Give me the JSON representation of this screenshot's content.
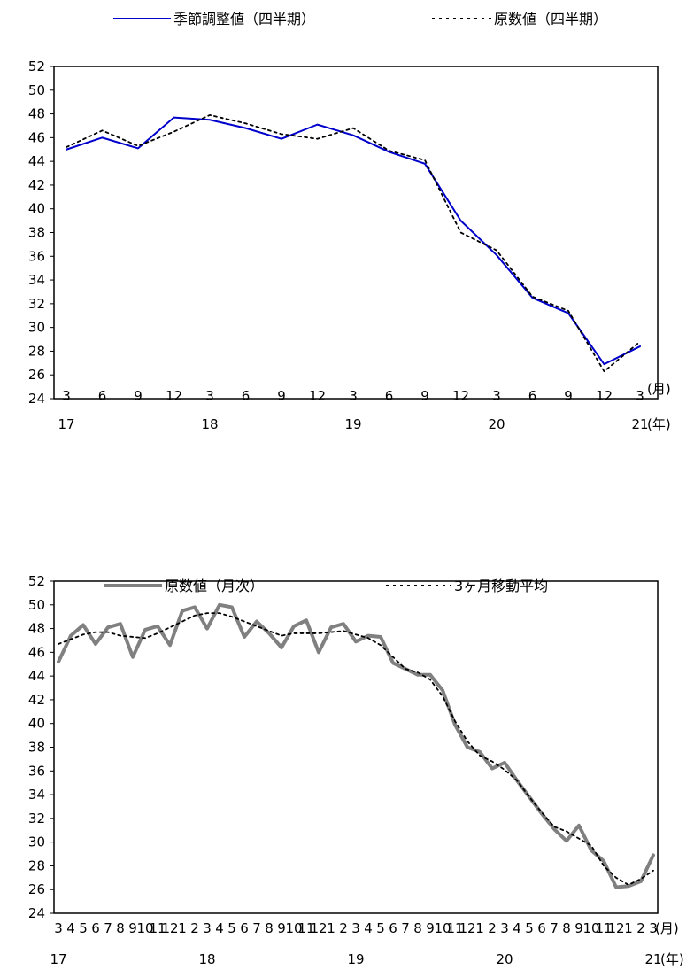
{
  "chart_data": [
    {
      "type": "line",
      "title": "",
      "legend_position": "top",
      "grid": false,
      "ylim": [
        24,
        52
      ],
      "y_ticks": [
        24,
        26,
        28,
        30,
        32,
        34,
        36,
        38,
        40,
        42,
        44,
        46,
        48,
        50,
        52
      ],
      "x_month_labels": [
        "3",
        "6",
        "9",
        "12",
        "3",
        "6",
        "9",
        "12",
        "3",
        "6",
        "9",
        "12",
        "3",
        "6",
        "9",
        "12",
        "3"
      ],
      "x_month_unit": "(月)",
      "year_labels": [
        {
          "label": "17",
          "index": 0
        },
        {
          "label": "18",
          "index": 4
        },
        {
          "label": "19",
          "index": 8
        },
        {
          "label": "20",
          "index": 12
        },
        {
          "label": "21",
          "index": 16
        }
      ],
      "x_year_unit": "(年)",
      "series": [
        {
          "name": "季節調整値（四半期）",
          "color": "#0000cc",
          "style": "solid",
          "values": [
            45.0,
            46.0,
            45.1,
            47.7,
            47.5,
            46.8,
            45.9,
            47.1,
            46.2,
            44.8,
            43.8,
            39.0,
            36.1,
            32.5,
            31.2,
            26.9,
            28.4
          ]
        },
        {
          "name": "原数値（四半期）",
          "color": "#000000",
          "style": "dotted",
          "values": [
            45.2,
            46.6,
            45.3,
            46.5,
            47.9,
            47.2,
            46.3,
            45.9,
            46.8,
            44.9,
            44.1,
            38.0,
            36.5,
            32.6,
            31.4,
            26.3,
            28.8
          ]
        }
      ]
    },
    {
      "type": "line",
      "title": "",
      "legend_position": "top",
      "grid": false,
      "ylim": [
        24,
        52
      ],
      "y_ticks": [
        24,
        26,
        28,
        30,
        32,
        34,
        36,
        38,
        40,
        42,
        44,
        46,
        48,
        50,
        52
      ],
      "x_month_labels": [
        "3",
        "4",
        "5",
        "6",
        "7",
        "8",
        "9",
        "10",
        "11",
        "12",
        "1",
        "2",
        "3",
        "4",
        "5",
        "6",
        "7",
        "8",
        "9",
        "10",
        "11",
        "12",
        "1",
        "2",
        "3",
        "4",
        "5",
        "6",
        "7",
        "8",
        "9",
        "10",
        "11",
        "12",
        "1",
        "2",
        "3",
        "4",
        "5",
        "6",
        "7",
        "8",
        "9",
        "10",
        "11",
        "12",
        "1",
        "2",
        "3"
      ],
      "x_month_unit": "(月)",
      "year_labels": [
        {
          "label": "17",
          "index": 0
        },
        {
          "label": "18",
          "index": 12
        },
        {
          "label": "19",
          "index": 24
        },
        {
          "label": "20",
          "index": 36
        },
        {
          "label": "21",
          "index": 48
        }
      ],
      "x_year_unit": "(年)",
      "series": [
        {
          "name": "原数値（月次）",
          "color": "#808080",
          "style": "solid",
          "values": [
            45.2,
            47.4,
            48.3,
            46.7,
            48.1,
            48.4,
            45.6,
            47.9,
            48.2,
            46.6,
            49.5,
            49.8,
            48.0,
            50.0,
            49.8,
            47.3,
            48.6,
            47.6,
            46.4,
            48.2,
            48.7,
            46.0,
            48.1,
            48.4,
            46.9,
            47.4,
            47.3,
            45.1,
            44.6,
            44.1,
            44.1,
            42.8,
            39.9,
            38.0,
            37.6,
            36.2,
            36.7,
            35.2,
            33.8,
            32.4,
            31.1,
            30.1,
            31.4,
            29.3,
            28.4,
            26.2,
            26.3,
            26.7,
            28.9
          ]
        },
        {
          "name": "3ヶ月移動平均",
          "color": "#000000",
          "style": "dotted",
          "values": [
            46.7,
            47.1,
            47.5,
            47.7,
            47.7,
            47.4,
            47.3,
            47.2,
            47.6,
            48.1,
            48.6,
            49.1,
            49.3,
            49.3,
            49.0,
            48.6,
            48.2,
            47.8,
            47.4,
            47.6,
            47.6,
            47.6,
            47.7,
            47.8,
            47.5,
            47.2,
            46.6,
            45.6,
            44.6,
            44.3,
            43.7,
            42.3,
            40.2,
            38.5,
            37.3,
            36.8,
            36.1,
            35.2,
            33.8,
            32.5,
            31.3,
            30.9,
            30.3,
            29.7,
            28.0,
            27.0,
            26.4,
            26.9,
            27.6
          ]
        }
      ]
    }
  ]
}
